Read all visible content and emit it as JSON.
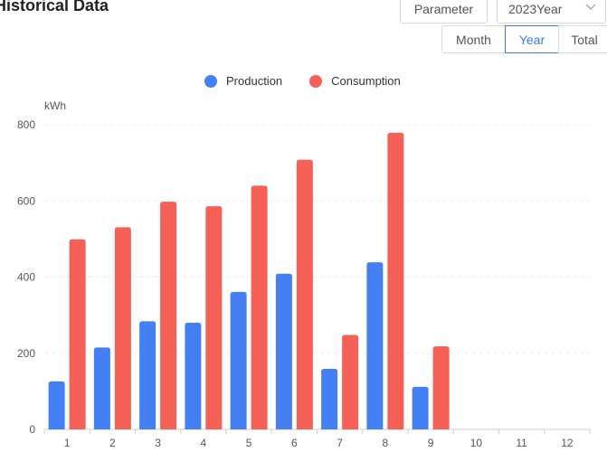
{
  "header": {
    "title": "Historical Data",
    "parameter_label": "Parameter",
    "year_select_value": "2023Year",
    "period_tabs": [
      "Month",
      "Year",
      "Total"
    ],
    "active_tab": "Year"
  },
  "colors": {
    "production": "#4480f4",
    "consumption": "#f66157",
    "accent": "#3a7bf0"
  },
  "chart_data": {
    "type": "bar",
    "ylabel": "kWh",
    "ylim": [
      0,
      800
    ],
    "yticks": [
      0,
      200,
      400,
      600,
      800
    ],
    "categories": [
      "1",
      "2",
      "3",
      "4",
      "5",
      "6",
      "7",
      "8",
      "9",
      "10",
      "11",
      "12"
    ],
    "series": [
      {
        "name": "Production",
        "values": [
          126,
          215,
          284,
          280,
          361,
          409,
          159,
          439,
          112,
          null,
          null,
          null
        ]
      },
      {
        "name": "Consumption",
        "values": [
          499,
          531,
          598,
          586,
          640,
          708,
          248,
          779,
          218,
          null,
          null,
          null
        ]
      }
    ],
    "legend_position": "top-center",
    "grid": true
  }
}
